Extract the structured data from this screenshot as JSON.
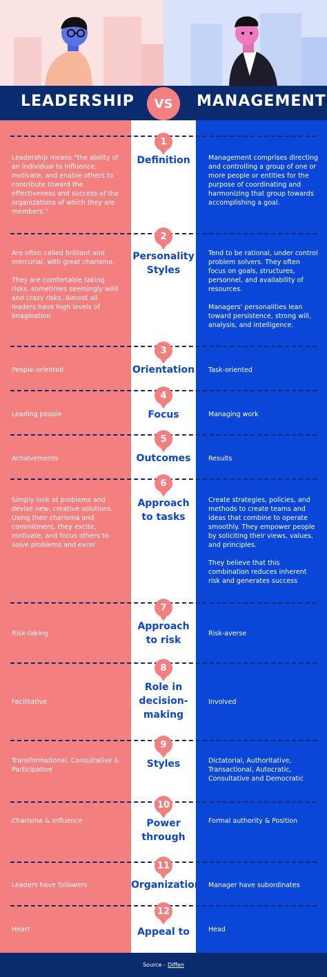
{
  "header": {
    "left_title": "LEADERSHIP",
    "vs": "VS",
    "right_title": "MANAGEMENT"
  },
  "colors": {
    "coral": "#f47f7f",
    "blue": "#0a47d8",
    "navy": "#0b2b6f"
  },
  "rows": [
    {
      "num": "1",
      "topic": "Definition",
      "left": [
        "Leadership means \"the ability of an individual to influence, motivate, and enable others to contribute toward the effectiveness and success of the organizations of which they are members.\""
      ],
      "right": [
        "Management comprises directing and controlling a group of one or more people or entities for the purpose of coordinating and harmonizing that group towards accomplishing a goal."
      ]
    },
    {
      "num": "2",
      "topic": "Personality Styles",
      "left": [
        "Are often called brilliant and mercurial, with great charisma.",
        "They are comfortable taking risks, sometimes seemingly wild and crazy risks. Almost all leaders have high levels of imagination"
      ],
      "right": [
        "Tend to be rational, under control problem solvers. They often focus on goals, structures, personnel, and availability of resources.",
        "Managers' personalities lean toward persistence, strong will, analysis, and intelligence."
      ]
    },
    {
      "num": "3",
      "topic": "Orientation",
      "left": [
        "People-oriented"
      ],
      "right": [
        "Task-oriented"
      ]
    },
    {
      "num": "4",
      "topic": "Focus",
      "left": [
        "Leading people"
      ],
      "right": [
        "Managing work"
      ]
    },
    {
      "num": "5",
      "topic": "Outcomes",
      "left": [
        "Achievements"
      ],
      "right": [
        "Results"
      ]
    },
    {
      "num": "6",
      "topic": "Approach to tasks",
      "left": [
        "Simply look at problems and devise new, creative solutions. Using their charisma and commitment, they excite, motivate, and focus others to solve problems and excel."
      ],
      "right": [
        "Create strategies, policies, and methods to create teams and ideas that combine to operate smoothly. They empower people by soliciting their views, values, and principles.",
        "They believe that this combination reduces inherent risk and generates success"
      ]
    },
    {
      "num": "7",
      "topic": "Approach to risk",
      "left": [
        "Risk-taking"
      ],
      "right": [
        "Risk-averse"
      ]
    },
    {
      "num": "8",
      "topic": "Role in decision-making",
      "left": [
        "Facilitative"
      ],
      "right": [
        "Involved"
      ]
    },
    {
      "num": "9",
      "topic": "Styles",
      "left": [
        "Transformational, Consultative & Participative"
      ],
      "right": [
        "Dictatorial, Authoritative, Transactional, Autocratic, Consultative and Democratic"
      ]
    },
    {
      "num": "10",
      "topic": "Power through",
      "left": [
        "Charisma & Influence"
      ],
      "right": [
        "Formal authority & Position"
      ]
    },
    {
      "num": "11",
      "topic": "Organization",
      "left": [
        "Leaders have followers"
      ],
      "right": [
        "Manager have subordinates"
      ]
    },
    {
      "num": "12",
      "topic": "Appeal to",
      "left": [
        "Heart"
      ],
      "right": [
        "Head"
      ]
    }
  ],
  "footer": {
    "prefix": "Source -",
    "link": "Diffen"
  }
}
